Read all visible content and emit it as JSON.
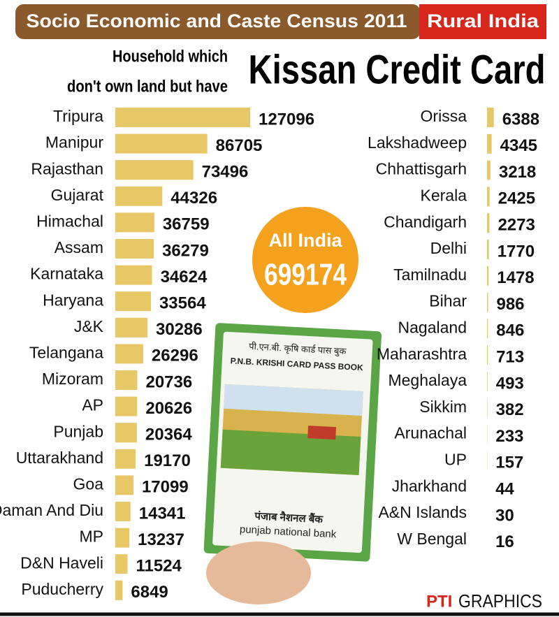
{
  "header": {
    "title": "Socio Economic and Caste Census 2011",
    "tag": "Rural India"
  },
  "subtitle": [
    "Household which",
    "don't own land but have"
  ],
  "title": "Kissan Credit Card",
  "total": {
    "label": "All India",
    "value": 699174
  },
  "photo": {
    "card_hindi": "पी.एन.बी. कृषि कार्ड पास बुक",
    "card_title": "P.N.B. KRISHI CARD PASS BOOK",
    "bank_hindi": "पंजाब नैशनल बैंक",
    "bank": "punjab national bank"
  },
  "credit": {
    "agency": "PTI",
    "label": "GRAPHICS"
  },
  "chart_data": [
    {
      "type": "bar",
      "orientation": "horizontal",
      "color": "#e8c766",
      "categories": [
        "Tripura",
        "Manipur",
        "Rajasthan",
        "Gujarat",
        "Himachal",
        "Assam",
        "Karnataka",
        "Haryana",
        "J&K",
        "Telangana",
        "Mizoram",
        "AP",
        "Punjab",
        "Uttarakhand",
        "Goa",
        "Daman And Diu",
        "MP",
        "D&N Haveli",
        "Puducherry"
      ],
      "values": [
        127096,
        86705,
        73496,
        44326,
        36759,
        36279,
        34624,
        33564,
        30286,
        26296,
        20736,
        20626,
        20364,
        19170,
        17099,
        14341,
        13237,
        11524,
        6849
      ]
    },
    {
      "type": "bar",
      "orientation": "horizontal",
      "color": "#e8c766",
      "categories": [
        "Orissa",
        "Lakshadweep",
        "Chhattisgarh",
        "Kerala",
        "Chandigarh",
        "Delhi",
        "Tamilnadu",
        "Bihar",
        "Nagaland",
        "Maharashtra",
        "Meghalaya",
        "Sikkim",
        "Arunachal",
        "UP",
        "Jharkhand",
        "A&N Islands",
        "W Bengal"
      ],
      "values": [
        6388,
        4345,
        3218,
        2425,
        2273,
        1770,
        1478,
        986,
        846,
        713,
        493,
        382,
        233,
        157,
        44,
        30,
        16
      ]
    }
  ]
}
